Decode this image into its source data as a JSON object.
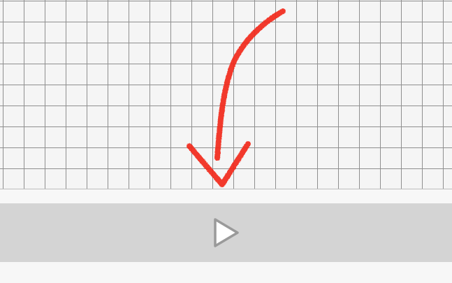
{
  "canvas": {
    "grid_color": "#8f8f8f",
    "background_color": "#f5f5f5",
    "drawing": {
      "stroke_color": "#f22a1a",
      "shape": "arrow-pointing-down"
    }
  },
  "controls": {
    "bar_color": "#d4d4d4",
    "play_icon": "play-icon",
    "play_icon_color": "#9a9a9a"
  }
}
